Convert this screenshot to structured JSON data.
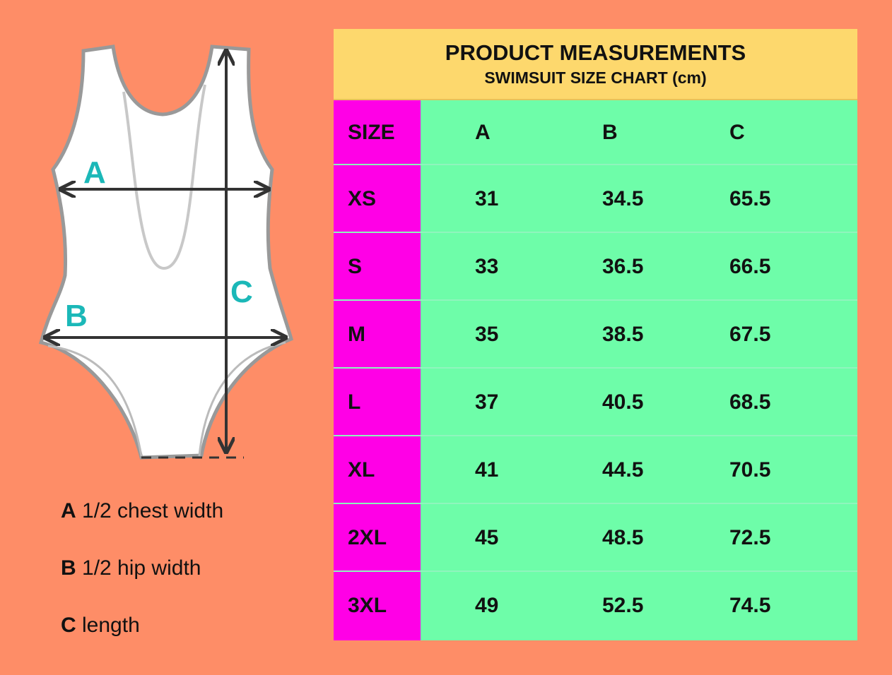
{
  "diagram": {
    "labels": [
      "A",
      "B",
      "C"
    ]
  },
  "legend": [
    {
      "letter": "A",
      "text": "1/2 chest width"
    },
    {
      "letter": "B",
      "text": "1/2 hip width"
    },
    {
      "letter": "C",
      "text": "length"
    }
  ],
  "header": {
    "title": "PRODUCT MEASUREMENTS",
    "subtitle": "SWIMSUIT SIZE CHART (cm)"
  },
  "table": {
    "columns": [
      "SIZE",
      "A",
      "B",
      "C"
    ],
    "rows": [
      [
        "XS",
        "31",
        "34.5",
        "65.5"
      ],
      [
        "S",
        "33",
        "36.5",
        "66.5"
      ],
      [
        "M",
        "35",
        "38.5",
        "67.5"
      ],
      [
        "L",
        "37",
        "40.5",
        "68.5"
      ],
      [
        "XL",
        "41",
        "44.5",
        "70.5"
      ],
      [
        "2XL",
        "45",
        "48.5",
        "72.5"
      ],
      [
        "3XL",
        "49",
        "52.5",
        "74.5"
      ]
    ]
  }
}
